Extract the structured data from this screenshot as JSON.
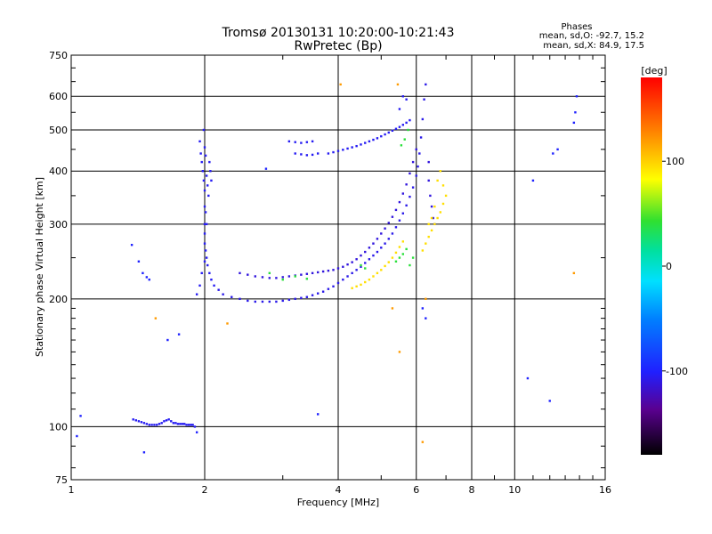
{
  "chart_data": {
    "type": "scatter",
    "title": "Tromsø 20130131 10:20:00-10:21:43",
    "subtitle": "RwPretec (Bp)",
    "xlabel": "Frequency [MHz]",
    "ylabel": "Stationary phase Virtual Height [km]",
    "x_scale": "log",
    "y_scale": "log",
    "xlim": [
      1,
      16
    ],
    "ylim": [
      75,
      750
    ],
    "x_ticks": [
      1,
      2,
      4,
      6,
      8,
      10,
      16
    ],
    "x_tick_labels": [
      "1",
      "2",
      "4",
      "6",
      "8",
      "10",
      "16"
    ],
    "y_ticks": [
      75,
      100,
      200,
      300,
      400,
      500,
      600,
      750
    ],
    "y_tick_labels": [
      "75",
      "100",
      "200",
      "300",
      "400",
      "500",
      "600",
      "750"
    ],
    "grid": true,
    "stats": {
      "heading": "Phases",
      "line_o": "mean, sd,O: -92.7, 15.2",
      "line_x": "mean, sd,X:  84.9, 17.5"
    },
    "colorbar": {
      "label": "[deg]",
      "range": [
        -180,
        180
      ],
      "ticks": [
        100,
        0,
        -100
      ],
      "tick_labels": [
        "100",
        "0",
        "-100"
      ]
    },
    "series": [
      {
        "trace": "low-E",
        "phase_deg": -105,
        "points": [
          [
            1.38,
            104
          ],
          [
            1.4,
            103.5
          ],
          [
            1.42,
            103
          ],
          [
            1.44,
            102.5
          ],
          [
            1.46,
            102
          ],
          [
            1.48,
            101.5
          ],
          [
            1.5,
            101
          ],
          [
            1.52,
            101
          ],
          [
            1.54,
            101
          ],
          [
            1.56,
            101
          ],
          [
            1.58,
            101.5
          ],
          [
            1.6,
            102
          ],
          [
            1.62,
            103
          ],
          [
            1.64,
            103.5
          ],
          [
            1.66,
            104
          ],
          [
            1.68,
            103
          ],
          [
            1.7,
            102
          ],
          [
            1.72,
            102
          ],
          [
            1.74,
            101.5
          ],
          [
            1.76,
            101.5
          ],
          [
            1.78,
            101.5
          ],
          [
            1.8,
            101.5
          ],
          [
            1.82,
            101
          ],
          [
            1.84,
            101
          ],
          [
            1.86,
            101
          ],
          [
            1.88,
            101
          ],
          [
            1.9,
            100
          ]
        ]
      },
      {
        "trace": "F-cusp",
        "phase_deg": -105,
        "points": [
          [
            1.95,
            470
          ],
          [
            1.96,
            440
          ],
          [
            1.97,
            420
          ],
          [
            1.98,
            400
          ],
          [
            1.99,
            380
          ],
          [
            2.0,
            360
          ],
          [
            2.0,
            330
          ],
          [
            2.0,
            300
          ],
          [
            2.0,
            285
          ],
          [
            2.0,
            270
          ],
          [
            2.01,
            260
          ],
          [
            2.02,
            250
          ],
          [
            2.03,
            240
          ],
          [
            2.05,
            230
          ],
          [
            2.07,
            222
          ],
          [
            2.1,
            215
          ],
          [
            2.02,
            390
          ],
          [
            2.03,
            370
          ],
          [
            2.04,
            350
          ],
          [
            2.05,
            420
          ],
          [
            2.06,
            400
          ],
          [
            2.07,
            380
          ],
          [
            1.99,
            500
          ],
          [
            2.0,
            455
          ],
          [
            2.01,
            435
          ],
          [
            1.97,
            230
          ],
          [
            1.95,
            215
          ],
          [
            1.92,
            205
          ],
          [
            2.0,
            245
          ],
          [
            2.01,
            320
          ],
          [
            2.02,
            300
          ]
        ]
      },
      {
        "trace": "F-lower",
        "phase_deg": -108,
        "points": [
          [
            2.15,
            210
          ],
          [
            2.2,
            205
          ],
          [
            2.3,
            202
          ],
          [
            2.4,
            200
          ],
          [
            2.5,
            198
          ],
          [
            2.6,
            197
          ],
          [
            2.7,
            197
          ],
          [
            2.8,
            197
          ],
          [
            2.9,
            197
          ],
          [
            3.0,
            198
          ],
          [
            3.1,
            199
          ],
          [
            3.2,
            200
          ],
          [
            3.3,
            201
          ],
          [
            3.4,
            202
          ],
          [
            3.5,
            204
          ],
          [
            3.6,
            206
          ],
          [
            3.7,
            208
          ],
          [
            3.8,
            211
          ],
          [
            3.9,
            214
          ],
          [
            4.0,
            218
          ],
          [
            4.1,
            222
          ],
          [
            4.2,
            226
          ],
          [
            4.3,
            230
          ],
          [
            4.4,
            234
          ],
          [
            4.5,
            238
          ],
          [
            4.6,
            243
          ],
          [
            4.7,
            248
          ],
          [
            4.8,
            253
          ],
          [
            4.9,
            258
          ],
          [
            5.0,
            264
          ],
          [
            5.1,
            270
          ],
          [
            5.2,
            277
          ],
          [
            5.3,
            285
          ],
          [
            5.4,
            295
          ],
          [
            5.5,
            306
          ],
          [
            5.6,
            318
          ],
          [
            5.7,
            332
          ],
          [
            5.8,
            348
          ],
          [
            5.9,
            366
          ],
          [
            6.0,
            390
          ],
          [
            6.05,
            410
          ],
          [
            6.1,
            440
          ],
          [
            6.15,
            480
          ],
          [
            6.2,
            530
          ],
          [
            6.25,
            590
          ],
          [
            6.3,
            640
          ]
        ]
      },
      {
        "trace": "F-upper",
        "phase_deg": -112,
        "points": [
          [
            2.4,
            230
          ],
          [
            2.5,
            228
          ],
          [
            2.6,
            226
          ],
          [
            2.7,
            225
          ],
          [
            2.8,
            224
          ],
          [
            2.9,
            224
          ],
          [
            3.0,
            225
          ],
          [
            3.1,
            226
          ],
          [
            3.2,
            227
          ],
          [
            3.3,
            228
          ],
          [
            3.4,
            229
          ],
          [
            3.5,
            230
          ],
          [
            3.6,
            231
          ],
          [
            3.7,
            232
          ],
          [
            3.8,
            233
          ],
          [
            3.9,
            234
          ],
          [
            4.0,
            236
          ],
          [
            4.1,
            238
          ],
          [
            4.2,
            241
          ],
          [
            4.3,
            244
          ],
          [
            4.4,
            248
          ],
          [
            4.5,
            253
          ],
          [
            4.6,
            258
          ],
          [
            4.7,
            264
          ],
          [
            4.8,
            270
          ],
          [
            4.9,
            277
          ],
          [
            5.0,
            285
          ],
          [
            5.1,
            293
          ],
          [
            5.2,
            302
          ],
          [
            5.3,
            312
          ],
          [
            5.4,
            324
          ],
          [
            5.5,
            338
          ],
          [
            5.6,
            354
          ],
          [
            5.7,
            372
          ],
          [
            5.8,
            395
          ],
          [
            5.9,
            420
          ],
          [
            6.0,
            450
          ],
          [
            6.4,
            420
          ],
          [
            6.4,
            380
          ],
          [
            6.45,
            350
          ],
          [
            6.5,
            330
          ],
          [
            6.55,
            310
          ],
          [
            6.6,
            300
          ]
        ]
      },
      {
        "trace": "high-band",
        "phase_deg": -105,
        "points": [
          [
            3.1,
            470
          ],
          [
            3.2,
            468
          ],
          [
            3.3,
            466
          ],
          [
            3.4,
            468
          ],
          [
            3.5,
            470
          ],
          [
            3.2,
            440
          ],
          [
            3.3,
            438
          ],
          [
            3.4,
            436
          ],
          [
            3.5,
            437
          ],
          [
            3.6,
            440
          ],
          [
            3.8,
            440
          ],
          [
            3.9,
            443
          ],
          [
            4.0,
            446
          ],
          [
            4.1,
            449
          ],
          [
            4.2,
            452
          ],
          [
            4.3,
            455
          ],
          [
            4.4,
            458
          ],
          [
            4.5,
            462
          ],
          [
            4.6,
            466
          ],
          [
            4.7,
            470
          ],
          [
            4.8,
            474
          ],
          [
            4.9,
            478
          ],
          [
            5.0,
            483
          ],
          [
            5.1,
            488
          ],
          [
            5.2,
            493
          ],
          [
            5.3,
            498
          ],
          [
            5.4,
            503
          ],
          [
            5.5,
            508
          ],
          [
            5.6,
            514
          ],
          [
            5.7,
            520
          ],
          [
            5.8,
            527
          ],
          [
            5.6,
            600
          ],
          [
            5.7,
            590
          ],
          [
            5.5,
            560
          ]
        ]
      },
      {
        "trace": "X-mode",
        "phase_deg": 95,
        "points": [
          [
            4.3,
            212
          ],
          [
            4.4,
            214
          ],
          [
            4.5,
            216
          ],
          [
            4.6,
            219
          ],
          [
            4.7,
            222
          ],
          [
            4.8,
            226
          ],
          [
            4.9,
            230
          ],
          [
            5.0,
            234
          ],
          [
            5.1,
            239
          ],
          [
            5.2,
            244
          ],
          [
            5.3,
            250
          ],
          [
            5.4,
            257
          ],
          [
            5.5,
            265
          ],
          [
            5.6,
            273
          ],
          [
            6.2,
            260
          ],
          [
            6.3,
            270
          ],
          [
            6.4,
            280
          ],
          [
            6.5,
            290
          ],
          [
            6.6,
            300
          ],
          [
            6.7,
            310
          ],
          [
            6.8,
            320
          ],
          [
            6.9,
            335
          ],
          [
            7.0,
            350
          ],
          [
            6.7,
            380
          ],
          [
            6.8,
            400
          ],
          [
            6.9,
            370
          ],
          [
            6.6,
            330
          ],
          [
            6.5,
            310
          ],
          [
            6.4,
            300
          ]
        ]
      },
      {
        "trace": "mixed-phase",
        "phase_deg": 40,
        "points": [
          [
            5.4,
            245
          ],
          [
            5.5,
            250
          ],
          [
            5.6,
            255
          ],
          [
            5.7,
            262
          ],
          [
            5.8,
            240
          ],
          [
            5.9,
            250
          ],
          [
            5.55,
            460
          ],
          [
            5.65,
            475
          ],
          [
            5.75,
            500
          ],
          [
            4.5,
            240
          ],
          [
            4.6,
            236
          ],
          [
            2.8,
            230
          ],
          [
            3.0,
            222
          ],
          [
            3.2,
            226
          ],
          [
            3.4,
            223
          ]
        ]
      },
      {
        "trace": "scattered",
        "phase_deg": -100,
        "points": [
          [
            1.37,
            268
          ],
          [
            1.42,
            245
          ],
          [
            1.45,
            230
          ],
          [
            1.48,
            225
          ],
          [
            1.5,
            222
          ],
          [
            1.03,
            95
          ],
          [
            1.05,
            106
          ],
          [
            1.46,
            87
          ],
          [
            1.65,
            160
          ],
          [
            1.75,
            165
          ],
          [
            1.92,
            97
          ],
          [
            3.6,
            107
          ],
          [
            6.2,
            190
          ],
          [
            6.3,
            180
          ],
          [
            10.7,
            130
          ],
          [
            11.0,
            380
          ],
          [
            12.0,
            115
          ],
          [
            12.2,
            440
          ],
          [
            12.5,
            450
          ],
          [
            13.6,
            520
          ],
          [
            13.7,
            550
          ],
          [
            13.8,
            600
          ],
          [
            2.75,
            405
          ]
        ]
      },
      {
        "trace": "scattered-warm",
        "phase_deg": 120,
        "points": [
          [
            1.55,
            180
          ],
          [
            2.25,
            175
          ],
          [
            4.05,
            640
          ],
          [
            5.3,
            190
          ],
          [
            5.5,
            150
          ],
          [
            6.2,
            92
          ],
          [
            5.45,
            640
          ],
          [
            6.3,
            200
          ],
          [
            13.6,
            230
          ]
        ]
      }
    ]
  }
}
